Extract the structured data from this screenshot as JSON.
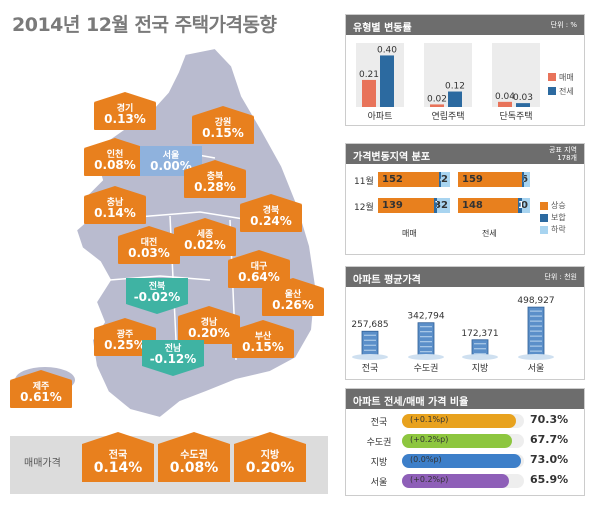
{
  "title": "2014년 12월 전국 주택가격동향",
  "map": {
    "regions": [
      {
        "name": "경기",
        "value": "0.13%",
        "trend": "up"
      },
      {
        "name": "강원",
        "value": "0.15%",
        "trend": "up"
      },
      {
        "name": "인천",
        "value": "0.08%",
        "trend": "up"
      },
      {
        "name": "서울",
        "value": "0.00%",
        "trend": "flat"
      },
      {
        "name": "충북",
        "value": "0.28%",
        "trend": "up"
      },
      {
        "name": "충남",
        "value": "0.14%",
        "trend": "up"
      },
      {
        "name": "경북",
        "value": "0.24%",
        "trend": "up"
      },
      {
        "name": "대전",
        "value": "0.03%",
        "trend": "up"
      },
      {
        "name": "세종",
        "value": "0.02%",
        "trend": "up"
      },
      {
        "name": "대구",
        "value": "0.64%",
        "trend": "up"
      },
      {
        "name": "전북",
        "value": "-0.02%",
        "trend": "down"
      },
      {
        "name": "울산",
        "value": "0.26%",
        "trend": "up"
      },
      {
        "name": "광주",
        "value": "0.25%",
        "trend": "up"
      },
      {
        "name": "경남",
        "value": "0.20%",
        "trend": "up"
      },
      {
        "name": "부산",
        "value": "0.15%",
        "trend": "up"
      },
      {
        "name": "전남",
        "value": "-0.12%",
        "trend": "down"
      },
      {
        "name": "제주",
        "value": "0.61%",
        "trend": "up"
      }
    ]
  },
  "summary": {
    "label": "매매가격",
    "items": [
      {
        "name": "전국",
        "value": "0.14%"
      },
      {
        "name": "수도권",
        "value": "0.08%"
      },
      {
        "name": "지방",
        "value": "0.20%"
      }
    ]
  },
  "panel1": {
    "title": "유형별 변동률",
    "unit": "단위 : %"
  },
  "panel2": {
    "title": "가격변동지역 분포",
    "unit1": "공표 지역",
    "unit2": "178개",
    "rows": [
      "11월",
      "12월"
    ],
    "groups": [
      "매매",
      "전세"
    ],
    "values": {
      "11월": {
        "매매": [
          152,
          4,
          22
        ],
        "전세": [
          159,
          3,
          16
        ]
      },
      "12월": {
        "매매": [
          139,
          7,
          32
        ],
        "전세": [
          148,
          10,
          20
        ]
      }
    },
    "legend": [
      "상승",
      "보합",
      "하락"
    ],
    "colors": [
      "#e8801e",
      "#2c6aa0",
      "#a8d4f0"
    ]
  },
  "panel3": {
    "title": "아파트 평균가격",
    "unit": "단위 : 천원"
  },
  "panel4": {
    "title": "아파트 전세/매매 가격 비율",
    "rows": [
      {
        "name": "전국",
        "change": "(+0.1%p)",
        "value": "70.3%",
        "ratio": 70.3,
        "color": "#e8a21e"
      },
      {
        "name": "수도권",
        "change": "(+0.2%p)",
        "value": "67.7%",
        "ratio": 67.7,
        "color": "#8dc63f"
      },
      {
        "name": "지방",
        "change": "(0.0%p)",
        "value": "73.0%",
        "ratio": 73.0,
        "color": "#3d7fc9"
      },
      {
        "name": "서울",
        "change": "(+0.2%p)",
        "value": "65.9%",
        "ratio": 65.9,
        "color": "#8e5fb8"
      }
    ]
  },
  "chart_data": [
    {
      "type": "bar",
      "title": "유형별 변동률",
      "unit": "단위 : %",
      "categories": [
        "아파트",
        "연립주택",
        "단독주택"
      ],
      "series": [
        {
          "name": "매매",
          "values": [
            0.21,
            0.02,
            0.04
          ],
          "labels": [
            "0.21",
            "0.02",
            "0.04"
          ],
          "color": "#e8735a"
        },
        {
          "name": "전세",
          "values": [
            0.4,
            0.12,
            0.03
          ],
          "labels": [
            "0.40",
            "0.12",
            "0.03"
          ],
          "color": "#2c6aa0"
        }
      ],
      "ylim": [
        0,
        0.45
      ],
      "legend": "right"
    },
    {
      "type": "bar",
      "title": "아파트 평균가격",
      "unit": "단위 : 천원",
      "categories": [
        "전국",
        "수도권",
        "지방",
        "서울"
      ],
      "values": [
        257685,
        342794,
        172371,
        498927
      ],
      "labels": [
        "257,685",
        "342,794",
        "172,371",
        "498,927"
      ]
    }
  ]
}
